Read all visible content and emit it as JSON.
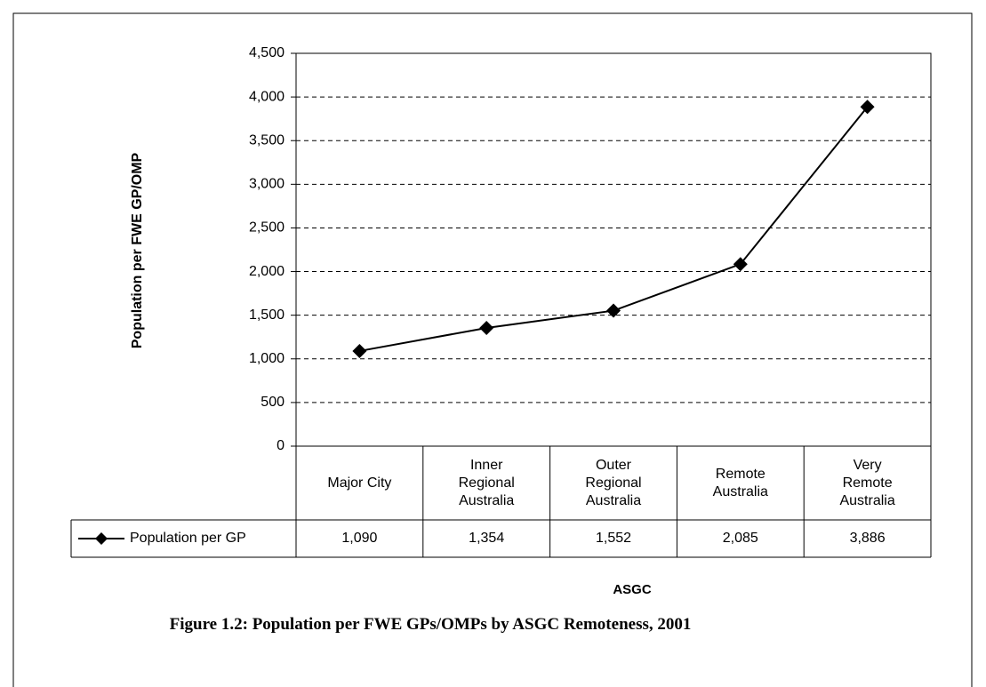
{
  "chart_data": {
    "type": "line",
    "ylabel": "Population per FWE GP/OMP",
    "xlabel": "ASGC",
    "caption": "Figure 1.2: Population per FWE GPs/OMPs by ASGC Remoteness, 2001",
    "categories": [
      "Major City",
      "Inner Regional Australia",
      "Outer Regional Australia",
      "Remote Australia",
      "Very Remote Australia"
    ],
    "series": [
      {
        "name": "Population per GP",
        "color": "#000000",
        "values": [
          1090,
          1354,
          1552,
          2085,
          3886
        ],
        "value_labels": [
          "1,090",
          "1,354",
          "1,552",
          "2,085",
          "3,886"
        ]
      }
    ],
    "ylim": [
      0,
      4500
    ],
    "yticks": [
      0,
      500,
      {
        "value": 1000,
        "label": "1,000"
      },
      {
        "value": 1500,
        "label": "1,500"
      },
      {
        "value": 2000,
        "label": "2,000"
      },
      {
        "value": 2500,
        "label": "2,500"
      },
      {
        "value": 3000,
        "label": "3,000"
      },
      {
        "value": 3500,
        "label": "3,500"
      },
      {
        "value": 4000,
        "label": "4,000"
      },
      {
        "value": 4500,
        "label": "4,500"
      }
    ],
    "grid": true
  }
}
